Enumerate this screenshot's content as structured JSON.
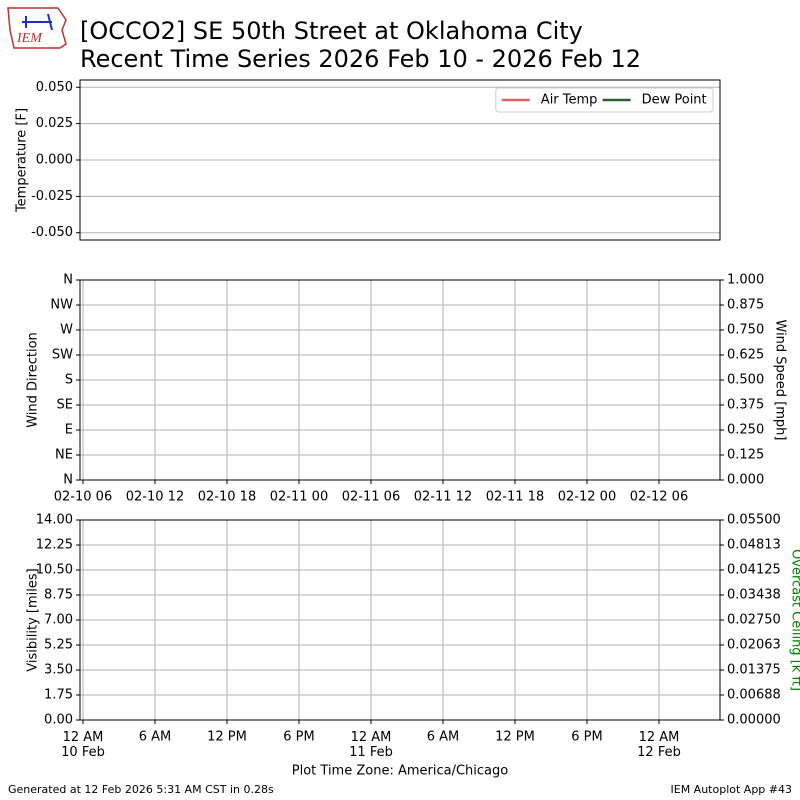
{
  "logo": "IEM",
  "title": [
    "[OCCO2] SE 50th Street at Oklahoma City",
    "Recent Time Series 2026 Feb 10 - 2026 Feb 12"
  ],
  "footer_left": "Generated at 12 Feb 2026 5:31 AM CST in 0.28s",
  "footer_right": "IEM Autoplot App #43",
  "chart_data": [
    {
      "type": "line",
      "ylabel": "Temperature [F]",
      "ylim": [
        -0.055,
        0.055
      ],
      "yticks": [
        {
          "value": 0.05,
          "label": "0.050"
        },
        {
          "value": 0.025,
          "label": "0.025"
        },
        {
          "value": 0,
          "label": "0.000"
        },
        {
          "value": -0.025,
          "label": "-0.025"
        },
        {
          "value": -0.05,
          "label": "-0.050"
        }
      ],
      "grid": "y",
      "legend": "upper right",
      "series": [
        {
          "name": "Air Temp",
          "color": "#e06060",
          "values": []
        },
        {
          "name": "Dew Point",
          "color": "#2e5e2e",
          "values": []
        }
      ]
    },
    {
      "type": "line",
      "ylabel": "Wind Direction",
      "y2label": "Wind Speed [mph]",
      "xlim": [
        5.75,
        59.083
      ],
      "xticks": [
        {
          "value": 6,
          "label": "02-10 06"
        },
        {
          "value": 12,
          "label": "02-10 12"
        },
        {
          "value": 18,
          "label": "02-10 18"
        },
        {
          "value": 24,
          "label": "02-11 00"
        },
        {
          "value": 30,
          "label": "02-11 06"
        },
        {
          "value": 36,
          "label": "02-11 12"
        },
        {
          "value": 42,
          "label": "02-11 18"
        },
        {
          "value": 48,
          "label": "02-12 00"
        },
        {
          "value": 54,
          "label": "02-12 06"
        }
      ],
      "ylim": [
        0,
        360
      ],
      "yticks": [
        {
          "value": 0,
          "label": "N"
        },
        {
          "value": 45,
          "label": "NE"
        },
        {
          "value": 90,
          "label": "E"
        },
        {
          "value": 135,
          "label": "SE"
        },
        {
          "value": 180,
          "label": "S"
        },
        {
          "value": 225,
          "label": "SW"
        },
        {
          "value": 270,
          "label": "W"
        },
        {
          "value": 315,
          "label": "NW"
        },
        {
          "value": 360,
          "label": "N"
        }
      ],
      "y2lim": [
        0,
        1
      ],
      "y2ticks": [
        {
          "value": 0,
          "label": "0.000"
        },
        {
          "value": 0.125,
          "label": "0.125"
        },
        {
          "value": 0.25,
          "label": "0.250"
        },
        {
          "value": 0.375,
          "label": "0.375"
        },
        {
          "value": 0.5,
          "label": "0.500"
        },
        {
          "value": 0.625,
          "label": "0.625"
        },
        {
          "value": 0.75,
          "label": "0.750"
        },
        {
          "value": 0.875,
          "label": "0.875"
        },
        {
          "value": 1,
          "label": "1.000"
        }
      ],
      "grid": "both"
    },
    {
      "type": "line",
      "ylabel": "Visibility [miles]",
      "y2label": "Overcast Ceiling [k ft]",
      "y2label_color": "#008000",
      "xlabel": "Plot Time Zone: America/Chicago",
      "xlim": [
        -0.25,
        53.083
      ],
      "xticks": [
        {
          "value": 0,
          "label": "12 AM\n10 Feb"
        },
        {
          "value": 6,
          "label": "6 AM"
        },
        {
          "value": 12,
          "label": "12 PM"
        },
        {
          "value": 18,
          "label": "6 PM"
        },
        {
          "value": 24,
          "label": "12 AM\n11 Feb"
        },
        {
          "value": 30,
          "label": "6 AM"
        },
        {
          "value": 36,
          "label": "12 PM"
        },
        {
          "value": 42,
          "label": "6 PM"
        },
        {
          "value": 48,
          "label": "12 AM\n12 Feb"
        }
      ],
      "ylim": [
        0,
        14
      ],
      "yticks": [
        {
          "value": 0,
          "label": "0.00"
        },
        {
          "value": 1.75,
          "label": "1.75"
        },
        {
          "value": 3.5,
          "label": "3.50"
        },
        {
          "value": 5.25,
          "label": "5.25"
        },
        {
          "value": 7,
          "label": "7.00"
        },
        {
          "value": 8.75,
          "label": "8.75"
        },
        {
          "value": 10.5,
          "label": "10.50"
        },
        {
          "value": 12.25,
          "label": "12.25"
        },
        {
          "value": 14,
          "label": "14.00"
        }
      ],
      "y2lim": [
        0,
        0.055
      ],
      "y2ticks": [
        {
          "value": 0,
          "label": "0.00000"
        },
        {
          "value": 0.006875,
          "label": "0.00688"
        },
        {
          "value": 0.01375,
          "label": "0.01375"
        },
        {
          "value": 0.020625,
          "label": "0.02063"
        },
        {
          "value": 0.0275,
          "label": "0.02750"
        },
        {
          "value": 0.034375,
          "label": "0.03438"
        },
        {
          "value": 0.04125,
          "label": "0.04125"
        },
        {
          "value": 0.048125,
          "label": "0.04813"
        },
        {
          "value": 0.055,
          "label": "0.05500"
        }
      ],
      "grid": "both"
    }
  ]
}
